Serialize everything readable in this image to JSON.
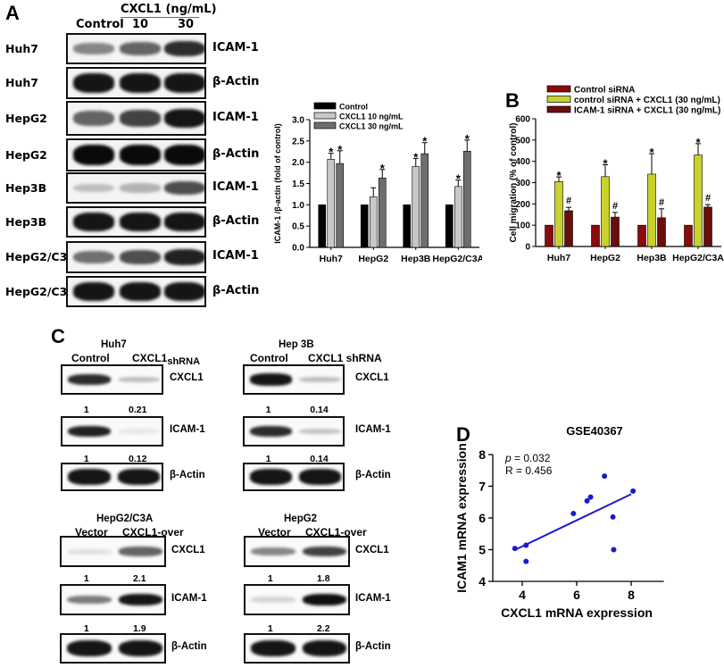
{
  "figure": {
    "panels": {
      "A": {
        "letter": "A",
        "header": {
          "treatment": "CXCL1 (ng/mL)",
          "columns": [
            "Control",
            "10",
            "30"
          ]
        },
        "blots": [
          {
            "cell_line": "Huh7",
            "target": "ICAM-1",
            "intensities": [
              0.45,
              0.6,
              0.85
            ]
          },
          {
            "cell_line": "Huh7",
            "target": "β-Actin",
            "intensities": [
              0.95,
              0.95,
              0.95
            ]
          },
          {
            "cell_line": "HepG2",
            "target": "ICAM-1",
            "intensities": [
              0.6,
              0.75,
              0.95
            ]
          },
          {
            "cell_line": "HepG2",
            "target": "β-Actin",
            "intensities": [
              1.0,
              1.0,
              1.0
            ]
          },
          {
            "cell_line": "Hep3B",
            "target": "ICAM-1",
            "intensities": [
              0.2,
              0.25,
              0.7
            ]
          },
          {
            "cell_line": "Hep3B",
            "target": "β-Actin",
            "intensities": [
              0.95,
              0.95,
              0.95
            ]
          },
          {
            "cell_line": "HepG2/C3A",
            "target": "ICAM-1",
            "intensities": [
              0.55,
              0.7,
              0.9
            ]
          },
          {
            "cell_line": "HepG2/C3A",
            "target": "β-Actin",
            "intensities": [
              0.95,
              0.95,
              0.95
            ]
          }
        ]
      },
      "B": {
        "letter": "B"
      },
      "C": {
        "letter": "C",
        "blots": [
          {
            "cell_line": "Huh7",
            "columns": [
              "Control",
              "CXCL1",
              "shRNA"
            ],
            "rows": [
              {
                "target": "CXCL1",
                "quant": [
                  "1",
                  "0.21"
                ]
              },
              {
                "target": "ICAM-1",
                "quant": [
                  "1",
                  "0.12"
                ]
              },
              {
                "target": "β-Actin",
                "quant": []
              }
            ]
          },
          {
            "cell_line": "Hep 3B",
            "columns": [
              "Control",
              "CXCL1 shRNA"
            ],
            "rows": [
              {
                "target": "CXCL1",
                "quant": [
                  "1",
                  "0.14"
                ]
              },
              {
                "target": "ICAM-1",
                "quant": [
                  "1",
                  "0.14"
                ]
              },
              {
                "target": "β-Actin",
                "quant": []
              }
            ]
          },
          {
            "cell_line": "HepG2/C3A",
            "columns": [
              "Vector",
              "CXCL1-over"
            ],
            "rows": [
              {
                "target": "CXCL1",
                "quant": [
                  "1",
                  "2.1"
                ]
              },
              {
                "target": "ICAM-1",
                "quant": [
                  "1",
                  "1.9"
                ]
              },
              {
                "target": "β-Actin",
                "quant": []
              }
            ]
          },
          {
            "cell_line": "HepG2",
            "columns": [
              "Vector",
              "CXCL1-over"
            ],
            "rows": [
              {
                "target": "CXCL1",
                "quant": [
                  "1",
                  "1.8"
                ]
              },
              {
                "target": "ICAM-1",
                "quant": [
                  "1",
                  "2.2"
                ]
              },
              {
                "target": "β-Actin",
                "quant": []
              }
            ]
          }
        ]
      },
      "D": {
        "letter": "D"
      }
    }
  },
  "chart_data": [
    {
      "panel": "A",
      "type": "bar",
      "title": "",
      "categories": [
        "Huh7",
        "HepG2",
        "Hep3B",
        "HepG2/C3A"
      ],
      "series": [
        {
          "name": "Control",
          "color": "#000000",
          "values": [
            1.0,
            1.0,
            1.0,
            1.0
          ],
          "errors": [
            0,
            0,
            0,
            0
          ],
          "marks": [
            "",
            "",
            "",
            ""
          ]
        },
        {
          "name": "CXCL1 10 ng/mL",
          "color": "#c8c8c8",
          "values": [
            2.07,
            1.19,
            1.9,
            1.43
          ],
          "errors": [
            0.14,
            0.21,
            0.19,
            0.15
          ],
          "marks": [
            "*",
            "",
            "*",
            "*"
          ]
        },
        {
          "name": "CXCL1 30 ng/mL",
          "color": "#6e6e6e",
          "values": [
            1.97,
            1.63,
            2.2,
            2.26
          ],
          "errors": [
            0.3,
            0.2,
            0.26,
            0.26
          ],
          "marks": [
            "*",
            "*",
            "*",
            "*"
          ]
        }
      ],
      "xlabel": "",
      "ylabel": "ICAM-1 /β-actin (fold of control)",
      "ylim": [
        0,
        3.0
      ],
      "yticks": [
        "0.0",
        "0.5",
        "1.0",
        "1.5",
        "2.0",
        "2.5",
        "3.0"
      ],
      "legend_position": "top-left",
      "grid": false
    },
    {
      "panel": "B",
      "type": "bar",
      "title": "",
      "categories": [
        "Huh7",
        "HepG2",
        "Hep3B",
        "HepG2/C3A"
      ],
      "series": [
        {
          "name": "Control siRNA",
          "color": "#8b0a0a",
          "values": [
            100,
            100,
            100,
            100
          ],
          "errors": [
            0,
            0,
            0,
            0
          ],
          "marks": [
            "",
            "",
            "",
            ""
          ]
        },
        {
          "name": "control siRNA + CXCL1 (30 ng/mL)",
          "color": "#c9d12c",
          "values": [
            305,
            328,
            340,
            430
          ],
          "errors": [
            22,
            56,
            96,
            53
          ],
          "marks": [
            "*",
            "*",
            "*",
            "*"
          ]
        },
        {
          "name": "ICAM-1 siRNA + CXCL1 (30 ng/mL)",
          "color": "#6a0d0d",
          "values": [
            168,
            138,
            135,
            185
          ],
          "errors": [
            16,
            22,
            42,
            12
          ],
          "marks": [
            "#",
            "#",
            "#",
            "#"
          ]
        }
      ],
      "xlabel": "",
      "ylabel": "Cell migration (% of control)",
      "ylim": [
        0,
        600
      ],
      "yticks": [
        "0",
        "100",
        "200",
        "300",
        "400",
        "500",
        "600"
      ],
      "legend_position": "top",
      "grid": false
    },
    {
      "panel": "D",
      "type": "scatter",
      "title": "GSE40367",
      "xlabel": "CXCL1 mRNA expression",
      "ylabel": "ICAM1 mRNA expression",
      "xlim": [
        3.0,
        9.2
      ],
      "ylim": [
        4,
        8
      ],
      "xticks": [
        "4",
        "6",
        "8"
      ],
      "yticks": [
        "4",
        "5",
        "6",
        "7",
        "8"
      ],
      "points": [
        {
          "x": 3.73,
          "y": 5.04
        },
        {
          "x": 4.14,
          "y": 5.14
        },
        {
          "x": 4.14,
          "y": 4.63
        },
        {
          "x": 5.88,
          "y": 6.14
        },
        {
          "x": 6.38,
          "y": 6.54
        },
        {
          "x": 6.51,
          "y": 6.66
        },
        {
          "x": 7.02,
          "y": 7.32
        },
        {
          "x": 7.33,
          "y": 6.03
        },
        {
          "x": 7.36,
          "y": 5.0
        },
        {
          "x": 8.07,
          "y": 6.85
        }
      ],
      "fit_line": {
        "x1": 3.75,
        "y1": 5.0,
        "x2": 8.0,
        "y2": 6.75
      },
      "annotations": {
        "p_label": "p",
        "p_value": " = 0.032",
        "r_text": "R = 0.456"
      },
      "color": "#1a1acc",
      "grid": false
    }
  ]
}
